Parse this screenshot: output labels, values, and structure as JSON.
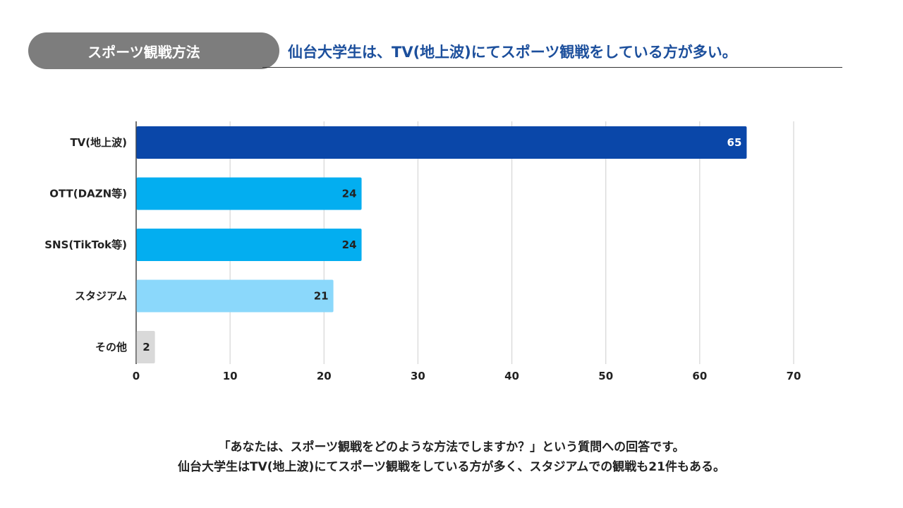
{
  "header": {
    "pill_label": "スポーツ観戦方法",
    "headline": "仙台大学生は、TV(地上波)にてスポーツ観戦をしている方が多い。"
  },
  "chart_data": {
    "type": "bar",
    "orientation": "horizontal",
    "title": "",
    "xlabel": "",
    "ylabel": "",
    "categories": [
      "TV(地上波)",
      "OTT(DAZN等)",
      "SNS(TikTok等)",
      "スタジアム",
      "その他"
    ],
    "values": [
      65,
      24,
      24,
      21,
      2
    ],
    "bar_colors": [
      "#0a47a9",
      "#03aef0",
      "#03aef0",
      "#8bd8fb",
      "#d9d9d9"
    ],
    "label_colors": [
      "#ffffff",
      "#222222",
      "#222222",
      "#222222",
      "#222222"
    ],
    "xlim": [
      0,
      70
    ],
    "xticks": [
      0,
      10,
      20,
      30,
      40,
      50,
      60,
      70
    ],
    "grid": true,
    "legend": "none"
  },
  "caption": {
    "line1": "「あなたは、スポーツ観戦をどのような方法でしますか？」という質問への回答です。",
    "line2": "仙台大学生はTV(地上波)にてスポーツ観戦をしている方が多く、スタジアムでの観戦も21件もある。"
  }
}
